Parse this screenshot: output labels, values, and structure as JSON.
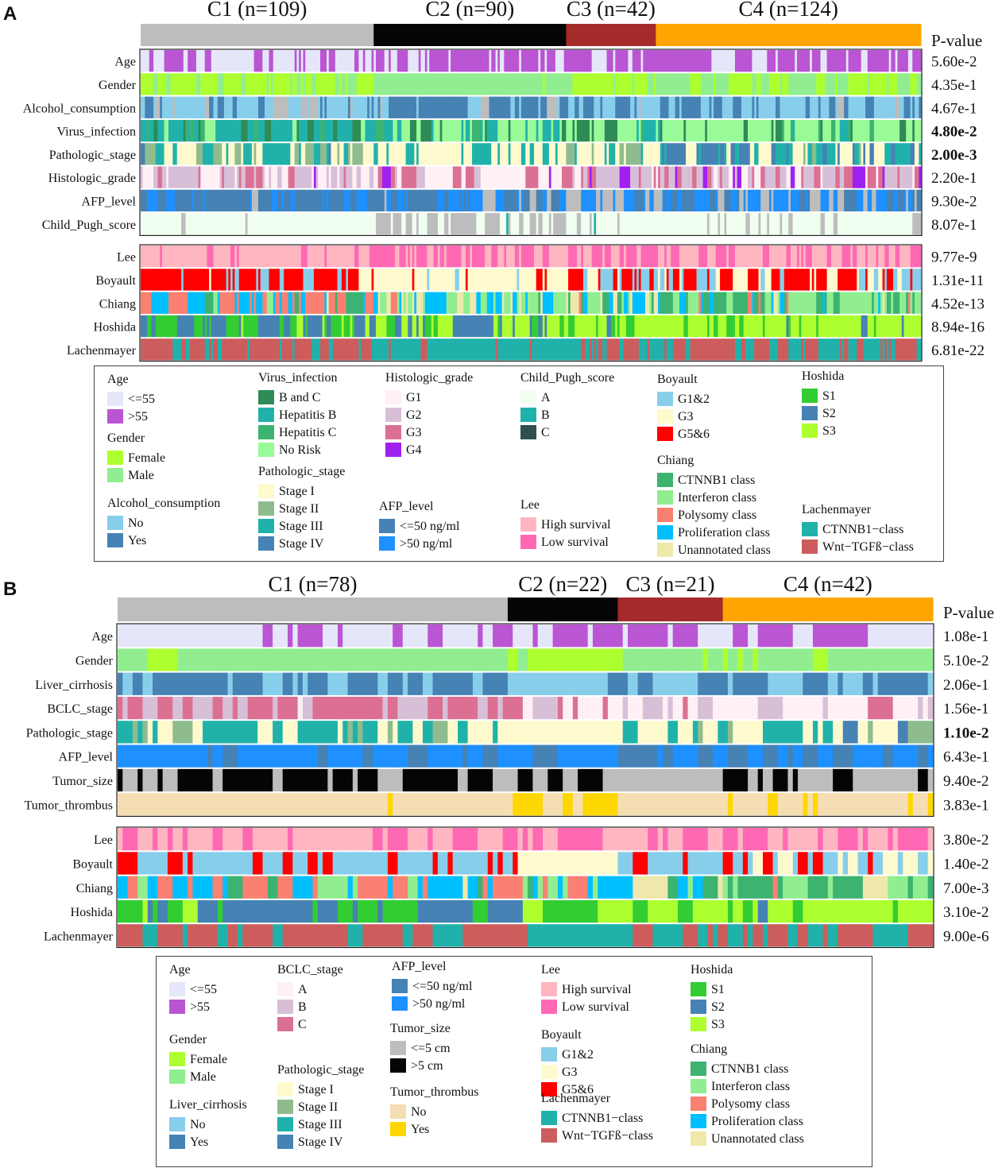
{
  "panels": [
    {
      "letter": "A",
      "pvalue_header": "P-value",
      "clusters": [
        {
          "label": "C1 (n=109)",
          "n": 109,
          "color": "#bdbdbd"
        },
        {
          "label": "C2 (n=90)",
          "n": 90,
          "color": "#050505"
        },
        {
          "label": "C3 (n=42)",
          "n": 42,
          "color": "#a52a2a"
        },
        {
          "label": "C4 (n=124)",
          "n": 124,
          "color": "#ffa500"
        }
      ],
      "clinical_rows": [
        {
          "name": "Age",
          "pvalue": "5.60e-2",
          "bold": false,
          "colors": [
            "#e6e6fa",
            "#ba55d3"
          ],
          "weights": [
            0.4,
            0.6
          ]
        },
        {
          "name": "Gender",
          "pvalue": "4.35e-1",
          "bold": false,
          "colors": [
            "#adff2f",
            "#90ee90"
          ],
          "weights": [
            0.3,
            0.7
          ]
        },
        {
          "name": "Alcohol_consumption",
          "pvalue": "4.67e-1",
          "bold": false,
          "colors": [
            "#87ceeb",
            "#4682b4",
            "#bdbdbd"
          ],
          "weights": [
            0.55,
            0.4,
            0.05
          ]
        },
        {
          "name": "Virus_infection",
          "pvalue": "4.80e-2",
          "bold": true,
          "colors": [
            "#98fb98",
            "#2e8b57",
            "#20b2aa",
            "#3cb371"
          ],
          "weights": [
            0.55,
            0.2,
            0.15,
            0.1
          ]
        },
        {
          "name": "Pathologic_stage",
          "pvalue": "2.00e-3",
          "bold": true,
          "colors": [
            "#fffacd",
            "#8fbc8f",
            "#20b2aa",
            "#4682b4"
          ],
          "weights": [
            0.5,
            0.15,
            0.25,
            0.1
          ]
        },
        {
          "name": "Histologic_grade",
          "pvalue": "2.20e-1",
          "bold": false,
          "colors": [
            "#fff0f5",
            "#d8bfd8",
            "#db7093",
            "#a020f0"
          ],
          "weights": [
            0.3,
            0.4,
            0.22,
            0.08
          ]
        },
        {
          "name": "AFP_level",
          "pvalue": "9.30e-2",
          "bold": false,
          "colors": [
            "#4682b4",
            "#1e90ff",
            "#bdbdbd"
          ],
          "weights": [
            0.45,
            0.4,
            0.15
          ]
        },
        {
          "name": "Child_Pugh_score",
          "pvalue": "8.07e-1",
          "bold": false,
          "colors": [
            "#f0fff0",
            "#bdbdbd",
            "#20b2aa"
          ],
          "weights": [
            0.75,
            0.23,
            0.02
          ]
        }
      ],
      "subtype_rows": [
        {
          "name": "Lee",
          "pvalue": "9.77e-9",
          "bold": false,
          "colors": [
            "#ffb6c1",
            "#ff69b4"
          ],
          "weights": [
            0.6,
            0.4
          ]
        },
        {
          "name": "Boyault",
          "pvalue": "1.31e-11",
          "bold": false,
          "colors": [
            "#ff0000",
            "#fffacd",
            "#87ceeb"
          ],
          "weights": [
            0.4,
            0.3,
            0.3
          ]
        },
        {
          "name": "Chiang",
          "pvalue": "4.52e-13",
          "bold": false,
          "colors": [
            "#3cb371",
            "#90ee90",
            "#fa8072",
            "#00bfff",
            "#eee8aa"
          ],
          "weights": [
            0.2,
            0.25,
            0.15,
            0.25,
            0.15
          ]
        },
        {
          "name": "Hoshida",
          "pvalue": "8.94e-16",
          "bold": false,
          "colors": [
            "#adff2f",
            "#32cd32",
            "#4682b4"
          ],
          "weights": [
            0.55,
            0.25,
            0.2
          ]
        },
        {
          "name": "Lachenmayer",
          "pvalue": "6.81e-22",
          "bold": false,
          "colors": [
            "#20b2aa",
            "#cd5c5c"
          ],
          "weights": [
            0.55,
            0.45
          ]
        }
      ],
      "legend": [
        {
          "title": "Age",
          "items": [
            [
              "<=55",
              "#e6e6fa"
            ],
            [
              ">55",
              "#ba55d3"
            ]
          ]
        },
        {
          "title": "Gender",
          "items": [
            [
              "Female",
              "#adff2f"
            ],
            [
              "Male",
              "#90ee90"
            ]
          ]
        },
        {
          "title": "Alcohol_consumption",
          "items": [
            [
              "No",
              "#87ceeb"
            ],
            [
              "Yes",
              "#4682b4"
            ]
          ]
        },
        {
          "title": "Virus_infection",
          "items": [
            [
              "B and C",
              "#2e8b57"
            ],
            [
              "Hepatitis B",
              "#20b2aa"
            ],
            [
              "Hepatitis C",
              "#3cb371"
            ],
            [
              "No Risk",
              "#98fb98"
            ]
          ]
        },
        {
          "title": "Pathologic_stage",
          "items": [
            [
              "Stage I",
              "#fffacd"
            ],
            [
              "Stage II",
              "#8fbc8f"
            ],
            [
              "Stage III",
              "#20b2aa"
            ],
            [
              "Stage IV",
              "#4682b4"
            ]
          ]
        },
        {
          "title": "Histologic_grade",
          "items": [
            [
              "G1",
              "#fff0f5"
            ],
            [
              "G2",
              "#d8bfd8"
            ],
            [
              "G3",
              "#db7093"
            ],
            [
              "G4",
              "#a020f0"
            ]
          ]
        },
        {
          "title": "AFP_level",
          "items": [
            [
              "<=50 ng/ml",
              "#4682b4"
            ],
            [
              ">50 ng/ml",
              "#1e90ff"
            ]
          ]
        },
        {
          "title": "Child_Pugh_score",
          "items": [
            [
              "A",
              "#f0fff0"
            ],
            [
              "B",
              "#20b2aa"
            ],
            [
              "C",
              "#2f4f4f"
            ]
          ]
        },
        {
          "title": "Lee",
          "items": [
            [
              "High survival",
              "#ffb6c1"
            ],
            [
              "Low survival",
              "#ff69b4"
            ]
          ]
        },
        {
          "title": "Boyault",
          "items": [
            [
              "G1&2",
              "#87ceeb"
            ],
            [
              "G3",
              "#fffacd"
            ],
            [
              "G5&6",
              "#ff0000"
            ]
          ]
        },
        {
          "title": "Chiang",
          "items": [
            [
              "CTNNB1 class",
              "#3cb371"
            ],
            [
              "Interferon class",
              "#90ee90"
            ],
            [
              "Polysomy class",
              "#fa8072"
            ],
            [
              "Proliferation class",
              "#00bfff"
            ],
            [
              "Unannotated class",
              "#eee8aa"
            ]
          ]
        },
        {
          "title": "Hoshida",
          "items": [
            [
              "S1",
              "#32cd32"
            ],
            [
              "S2",
              "#4682b4"
            ],
            [
              "S3",
              "#adff2f"
            ]
          ]
        },
        {
          "title": "Lachenmayer",
          "items": [
            [
              "CTNNB1−class",
              "#20b2aa"
            ],
            [
              "Wnt−TGFß−class",
              "#cd5c5c"
            ]
          ]
        }
      ]
    },
    {
      "letter": "B",
      "pvalue_header": "P-value",
      "clusters": [
        {
          "label": "C1 (n=78)",
          "n": 78,
          "color": "#bdbdbd"
        },
        {
          "label": "C2 (n=22)",
          "n": 22,
          "color": "#050505"
        },
        {
          "label": "C3 (n=21)",
          "n": 21,
          "color": "#a52a2a"
        },
        {
          "label": "C4 (n=42)",
          "n": 42,
          "color": "#ffa500"
        }
      ],
      "clinical_rows": [
        {
          "name": "Age",
          "pvalue": "1.08e-1",
          "bold": false,
          "colors": [
            "#e6e6fa",
            "#ba55d3"
          ],
          "weights": [
            0.65,
            0.35
          ]
        },
        {
          "name": "Gender",
          "pvalue": "5.10e-2",
          "bold": false,
          "colors": [
            "#90ee90",
            "#adff2f"
          ],
          "weights": [
            0.85,
            0.15
          ]
        },
        {
          "name": "Liver_cirrhosis",
          "pvalue": "2.06e-1",
          "bold": false,
          "colors": [
            "#4682b4",
            "#87ceeb"
          ],
          "weights": [
            0.65,
            0.35
          ]
        },
        {
          "name": "BCLC_stage",
          "pvalue": "1.56e-1",
          "bold": false,
          "colors": [
            "#fff0f5",
            "#d8bfd8",
            "#db7093"
          ],
          "weights": [
            0.55,
            0.25,
            0.2
          ]
        },
        {
          "name": "Pathologic_stage",
          "pvalue": "1.10e-2",
          "bold": true,
          "colors": [
            "#fffacd",
            "#20b2aa",
            "#8fbc8f",
            "#4682b4"
          ],
          "weights": [
            0.55,
            0.3,
            0.1,
            0.05
          ]
        },
        {
          "name": "AFP_level",
          "pvalue": "6.43e-1",
          "bold": false,
          "colors": [
            "#1e90ff",
            "#4682b4"
          ],
          "weights": [
            0.75,
            0.25
          ]
        },
        {
          "name": "Tumor_size",
          "pvalue": "9.40e-2",
          "bold": false,
          "colors": [
            "#050505",
            "#bdbdbd"
          ],
          "weights": [
            0.5,
            0.5
          ]
        },
        {
          "name": "Tumor_thrombus",
          "pvalue": "3.83e-1",
          "bold": false,
          "colors": [
            "#f5deb3",
            "#ffd700"
          ],
          "weights": [
            0.85,
            0.15
          ]
        }
      ],
      "subtype_rows": [
        {
          "name": "Lee",
          "pvalue": "3.80e-2",
          "bold": false,
          "colors": [
            "#ffb6c1",
            "#ff69b4"
          ],
          "weights": [
            0.55,
            0.45
          ]
        },
        {
          "name": "Boyault",
          "pvalue": "1.40e-2",
          "bold": false,
          "colors": [
            "#87ceeb",
            "#fffacd",
            "#ff0000"
          ],
          "weights": [
            0.4,
            0.35,
            0.25
          ]
        },
        {
          "name": "Chiang",
          "pvalue": "7.00e-3",
          "bold": false,
          "colors": [
            "#3cb371",
            "#90ee90",
            "#fa8072",
            "#00bfff",
            "#eee8aa"
          ],
          "weights": [
            0.2,
            0.25,
            0.15,
            0.25,
            0.15
          ]
        },
        {
          "name": "Hoshida",
          "pvalue": "3.10e-2",
          "bold": false,
          "colors": [
            "#adff2f",
            "#32cd32",
            "#4682b4"
          ],
          "weights": [
            0.55,
            0.25,
            0.2
          ]
        },
        {
          "name": "Lachenmayer",
          "pvalue": "9.00e-6",
          "bold": false,
          "colors": [
            "#20b2aa",
            "#cd5c5c"
          ],
          "weights": [
            0.5,
            0.5
          ]
        }
      ],
      "legend": [
        {
          "title": "Age",
          "items": [
            [
              "<=55",
              "#e6e6fa"
            ],
            [
              ">55",
              "#ba55d3"
            ]
          ]
        },
        {
          "title": "Gender",
          "items": [
            [
              "Female",
              "#adff2f"
            ],
            [
              "Male",
              "#90ee90"
            ]
          ]
        },
        {
          "title": "Liver_cirrhosis",
          "items": [
            [
              "No",
              "#87ceeb"
            ],
            [
              "Yes",
              "#4682b4"
            ]
          ]
        },
        {
          "title": "BCLC_stage",
          "items": [
            [
              "A",
              "#fff0f5"
            ],
            [
              "B",
              "#d8bfd8"
            ],
            [
              "C",
              "#db7093"
            ]
          ]
        },
        {
          "title": "Pathologic_stage",
          "items": [
            [
              "Stage I",
              "#fffacd"
            ],
            [
              "Stage II",
              "#8fbc8f"
            ],
            [
              "Stage III",
              "#20b2aa"
            ],
            [
              "Stage IV",
              "#4682b4"
            ]
          ]
        },
        {
          "title": "AFP_level",
          "items": [
            [
              "<=50 ng/ml",
              "#4682b4"
            ],
            [
              ">50 ng/ml",
              "#1e90ff"
            ]
          ]
        },
        {
          "title": "Tumor_size",
          "items": [
            [
              "<=5 cm",
              "#bdbdbd"
            ],
            [
              ">5 cm",
              "#050505"
            ]
          ]
        },
        {
          "title": "Tumor_thrombus",
          "items": [
            [
              "No",
              "#f5deb3"
            ],
            [
              "Yes",
              "#ffd700"
            ]
          ]
        },
        {
          "title": "Lee",
          "items": [
            [
              "High survival",
              "#ffb6c1"
            ],
            [
              "Low survival",
              "#ff69b4"
            ]
          ]
        },
        {
          "title": "Boyault",
          "items": [
            [
              "G1&2",
              "#87ceeb"
            ],
            [
              "G3",
              "#fffacd"
            ],
            [
              "G5&6",
              "#ff0000"
            ]
          ]
        },
        {
          "title": "Lachenmayer",
          "items": [
            [
              "CTNNB1−class",
              "#20b2aa"
            ],
            [
              "Wnt−TGFß−class",
              "#cd5c5c"
            ]
          ]
        },
        {
          "title": "Hoshida",
          "items": [
            [
              "S1",
              "#32cd32"
            ],
            [
              "S2",
              "#4682b4"
            ],
            [
              "S3",
              "#adff2f"
            ]
          ]
        },
        {
          "title": "Chiang",
          "items": [
            [
              "CTNNB1 class",
              "#3cb371"
            ],
            [
              "Interferon class",
              "#90ee90"
            ],
            [
              "Polysomy class",
              "#fa8072"
            ],
            [
              "Proliferation class",
              "#00bfff"
            ],
            [
              "Unannotated class",
              "#eee8aa"
            ]
          ]
        }
      ]
    }
  ],
  "chart_data": [
    {
      "type": "heatmap",
      "title": "A",
      "columns_groups": [
        "C1 (n=109)",
        "C2 (n=90)",
        "C3 (n=42)",
        "C4 (n=124)"
      ],
      "group_sizes": [
        109,
        90,
        42,
        124
      ],
      "rows": [
        "Age",
        "Gender",
        "Alcohol_consumption",
        "Virus_infection",
        "Pathologic_stage",
        "Histologic_grade",
        "AFP_level",
        "Child_Pugh_score",
        "Lee",
        "Boyault",
        "Chiang",
        "Hoshida",
        "Lachenmayer"
      ],
      "pvalues": [
        "5.60e-2",
        "4.35e-1",
        "4.67e-1",
        "4.80e-2",
        "2.00e-3",
        "2.20e-1",
        "9.30e-2",
        "8.07e-1",
        "9.77e-9",
        "1.31e-11",
        "4.52e-13",
        "8.94e-16",
        "6.81e-22"
      ]
    },
    {
      "type": "heatmap",
      "title": "B",
      "columns_groups": [
        "C1 (n=78)",
        "C2 (n=22)",
        "C3 (n=21)",
        "C4 (n=42)"
      ],
      "group_sizes": [
        78,
        22,
        21,
        42
      ],
      "rows": [
        "Age",
        "Gender",
        "Liver_cirrhosis",
        "BCLC_stage",
        "Pathologic_stage",
        "AFP_level",
        "Tumor_size",
        "Tumor_thrombus",
        "Lee",
        "Boyault",
        "Chiang",
        "Hoshida",
        "Lachenmayer"
      ],
      "pvalues": [
        "1.08e-1",
        "5.10e-2",
        "2.06e-1",
        "1.56e-1",
        "1.10e-2",
        "6.43e-1",
        "9.40e-2",
        "3.83e-1",
        "3.80e-2",
        "1.40e-2",
        "7.00e-3",
        "3.10e-2",
        "9.00e-6"
      ]
    }
  ]
}
